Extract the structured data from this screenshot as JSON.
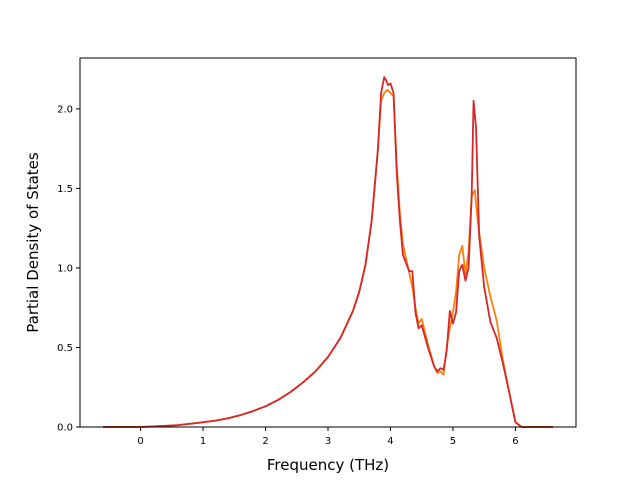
{
  "chart_data": {
    "type": "line",
    "title": "",
    "xlabel": "Frequency (THz)",
    "ylabel": "Partial Density of States",
    "xlim": [
      -0.97,
      6.97
    ],
    "ylim": [
      0.0,
      2.32
    ],
    "xticks": [
      0,
      1,
      2,
      3,
      4,
      5,
      6
    ],
    "yticks": [
      0.0,
      0.5,
      1.0,
      1.5,
      2.0
    ],
    "xtick_labels": [
      "0",
      "1",
      "2",
      "3",
      "4",
      "5",
      "6"
    ],
    "ytick_labels": [
      "0.0",
      "0.5",
      "1.0",
      "1.5",
      "2.0"
    ],
    "grid": false,
    "legend": null,
    "series": [
      {
        "color": "#ff7f0e",
        "x": [
          -0.6,
          0,
          0.3,
          0.6,
          0.9,
          1.2,
          1.4,
          1.6,
          1.8,
          2.0,
          2.2,
          2.4,
          2.6,
          2.8,
          3.0,
          3.2,
          3.4,
          3.5,
          3.6,
          3.7,
          3.8,
          3.85,
          3.9,
          3.95,
          4.0,
          4.05,
          4.1,
          4.15,
          4.2,
          4.3,
          4.35,
          4.4,
          4.45,
          4.5,
          4.6,
          4.7,
          4.75,
          4.8,
          4.85,
          4.9,
          4.95,
          5.0,
          5.05,
          5.1,
          5.15,
          5.2,
          5.25,
          5.3,
          5.35,
          5.4,
          5.5,
          5.6,
          5.7,
          5.8,
          5.9,
          6.0,
          6.1,
          6.4,
          6.6
        ],
        "y": [
          0.0,
          0.0,
          0.005,
          0.012,
          0.025,
          0.04,
          0.055,
          0.075,
          0.1,
          0.13,
          0.17,
          0.22,
          0.28,
          0.35,
          0.44,
          0.56,
          0.73,
          0.85,
          1.02,
          1.3,
          1.75,
          2.05,
          2.1,
          2.12,
          2.1,
          2.08,
          1.65,
          1.35,
          1.15,
          0.97,
          0.88,
          0.75,
          0.65,
          0.68,
          0.52,
          0.38,
          0.34,
          0.35,
          0.33,
          0.5,
          0.62,
          0.72,
          0.85,
          1.08,
          1.14,
          0.96,
          1.1,
          1.45,
          1.49,
          1.28,
          1.0,
          0.82,
          0.67,
          0.42,
          0.22,
          0.03,
          0.0,
          0.0,
          0.0
        ]
      },
      {
        "color": "#d62728",
        "x": [
          -0.6,
          0,
          0.3,
          0.6,
          0.9,
          1.2,
          1.4,
          1.6,
          1.8,
          2.0,
          2.2,
          2.4,
          2.6,
          2.8,
          3.0,
          3.2,
          3.4,
          3.5,
          3.6,
          3.7,
          3.8,
          3.85,
          3.9,
          3.93,
          3.96,
          4.0,
          4.05,
          4.1,
          4.15,
          4.2,
          4.3,
          4.35,
          4.4,
          4.45,
          4.5,
          4.6,
          4.7,
          4.75,
          4.8,
          4.85,
          4.9,
          4.95,
          5.0,
          5.05,
          5.1,
          5.15,
          5.2,
          5.25,
          5.3,
          5.33,
          5.37,
          5.42,
          5.5,
          5.6,
          5.7,
          5.8,
          5.9,
          6.0,
          6.1,
          6.4,
          6.6
        ],
        "y": [
          0.0,
          0.0,
          0.005,
          0.012,
          0.025,
          0.04,
          0.055,
          0.075,
          0.1,
          0.13,
          0.17,
          0.22,
          0.28,
          0.35,
          0.44,
          0.56,
          0.73,
          0.85,
          1.02,
          1.3,
          1.75,
          2.1,
          2.2,
          2.18,
          2.15,
          2.16,
          2.1,
          1.6,
          1.3,
          1.08,
          0.98,
          0.98,
          0.72,
          0.62,
          0.64,
          0.5,
          0.38,
          0.35,
          0.37,
          0.36,
          0.48,
          0.73,
          0.65,
          0.72,
          0.98,
          1.02,
          0.92,
          1.0,
          1.45,
          2.05,
          1.88,
          1.2,
          0.88,
          0.66,
          0.56,
          0.4,
          0.22,
          0.03,
          0.0,
          0.0,
          0.0
        ]
      }
    ]
  }
}
